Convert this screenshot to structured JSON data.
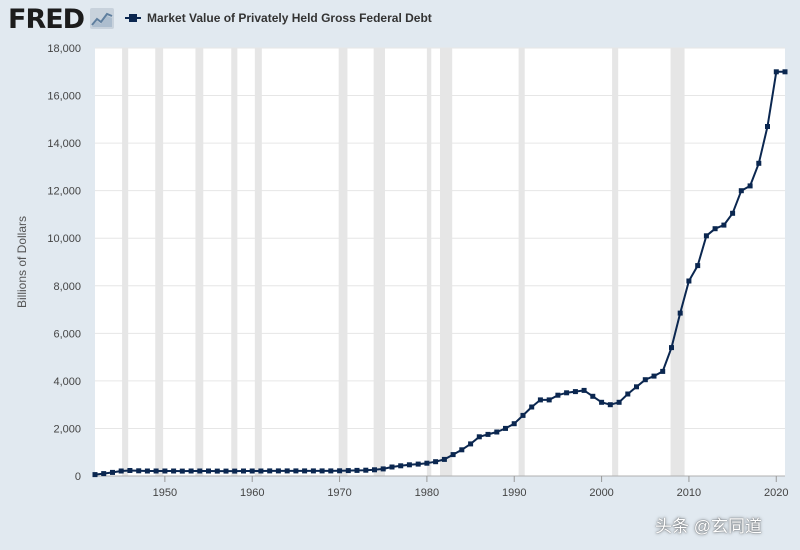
{
  "header": {
    "logo_text": "FRED",
    "legend_label": "Market Value of Privately Held Gross Federal Debt"
  },
  "watermark": "头条 @玄同道",
  "colors": {
    "background": "#e1e9f0",
    "plot_area": "#ffffff",
    "series": "#0b2750",
    "recession": "#e6e6e6",
    "grid": "#e6e6e6"
  },
  "chart_data": {
    "type": "line",
    "title": "Market Value of Privately Held Gross Federal Debt",
    "ylabel": "Billions of Dollars",
    "xlabel": "",
    "xlim": [
      1942,
      2021
    ],
    "ylim": [
      0,
      18000
    ],
    "x_ticks": [
      1950,
      1960,
      1970,
      1980,
      1990,
      2000,
      2010,
      2020
    ],
    "y_ticks": [
      0,
      2000,
      4000,
      6000,
      8000,
      10000,
      12000,
      14000,
      16000,
      18000
    ],
    "y_tick_labels": [
      "0",
      "2,000",
      "4,000",
      "6,000",
      "8,000",
      "10,000",
      "12,000",
      "14,000",
      "16,000",
      "18,000"
    ],
    "grid": true,
    "legend": "top-left",
    "recessions": [
      [
        1945.1,
        1945.8
      ],
      [
        1948.9,
        1949.8
      ],
      [
        1953.5,
        1954.4
      ],
      [
        1957.6,
        1958.3
      ],
      [
        1960.3,
        1961.1
      ],
      [
        1969.9,
        1970.9
      ],
      [
        1973.9,
        1975.2
      ],
      [
        1980.0,
        1980.5
      ],
      [
        1981.5,
        1982.9
      ],
      [
        1990.5,
        1991.2
      ],
      [
        2001.2,
        2001.9
      ],
      [
        2007.9,
        2009.5
      ]
    ],
    "series": [
      {
        "x": [
          1942,
          1943,
          1944,
          1945,
          1946,
          1947,
          1948,
          1949,
          1950,
          1951,
          1952,
          1953,
          1954,
          1955,
          1956,
          1957,
          1958,
          1959,
          1960,
          1961,
          1962,
          1963,
          1964,
          1965,
          1966,
          1967,
          1968,
          1969,
          1970,
          1971,
          1972,
          1973,
          1974,
          1975,
          1976,
          1977,
          1978,
          1979,
          1980,
          1981,
          1982,
          1983,
          1984,
          1985,
          1986,
          1987,
          1988,
          1989,
          1990,
          1991,
          1992,
          1993,
          1994,
          1995,
          1996,
          1997,
          1998,
          1999,
          2000,
          2001,
          2002,
          2003,
          2004,
          2005,
          2006,
          2007,
          2008,
          2009,
          2010,
          2011,
          2012,
          2013,
          2014,
          2015,
          2016,
          2017,
          2018,
          2019,
          2020,
          2021
        ],
        "values": [
          60,
          100,
          150,
          210,
          230,
          220,
          210,
          210,
          210,
          210,
          205,
          210,
          210,
          210,
          205,
          205,
          205,
          210,
          210,
          210,
          215,
          215,
          215,
          215,
          215,
          215,
          215,
          215,
          220,
          225,
          235,
          245,
          260,
          300,
          380,
          430,
          470,
          500,
          540,
          600,
          700,
          900,
          1100,
          1350,
          1650,
          1750,
          1850,
          2000,
          2200,
          2550,
          2900,
          3200,
          3200,
          3400,
          3500,
          3550,
          3600,
          3350,
          3100,
          3000,
          3100,
          3450,
          3750,
          4050,
          4200,
          4400,
          5400,
          6850,
          8200,
          8850,
          10100,
          10400,
          10550,
          11050,
          12000,
          12200,
          13150,
          14700,
          17000,
          17000
        ]
      }
    ]
  }
}
